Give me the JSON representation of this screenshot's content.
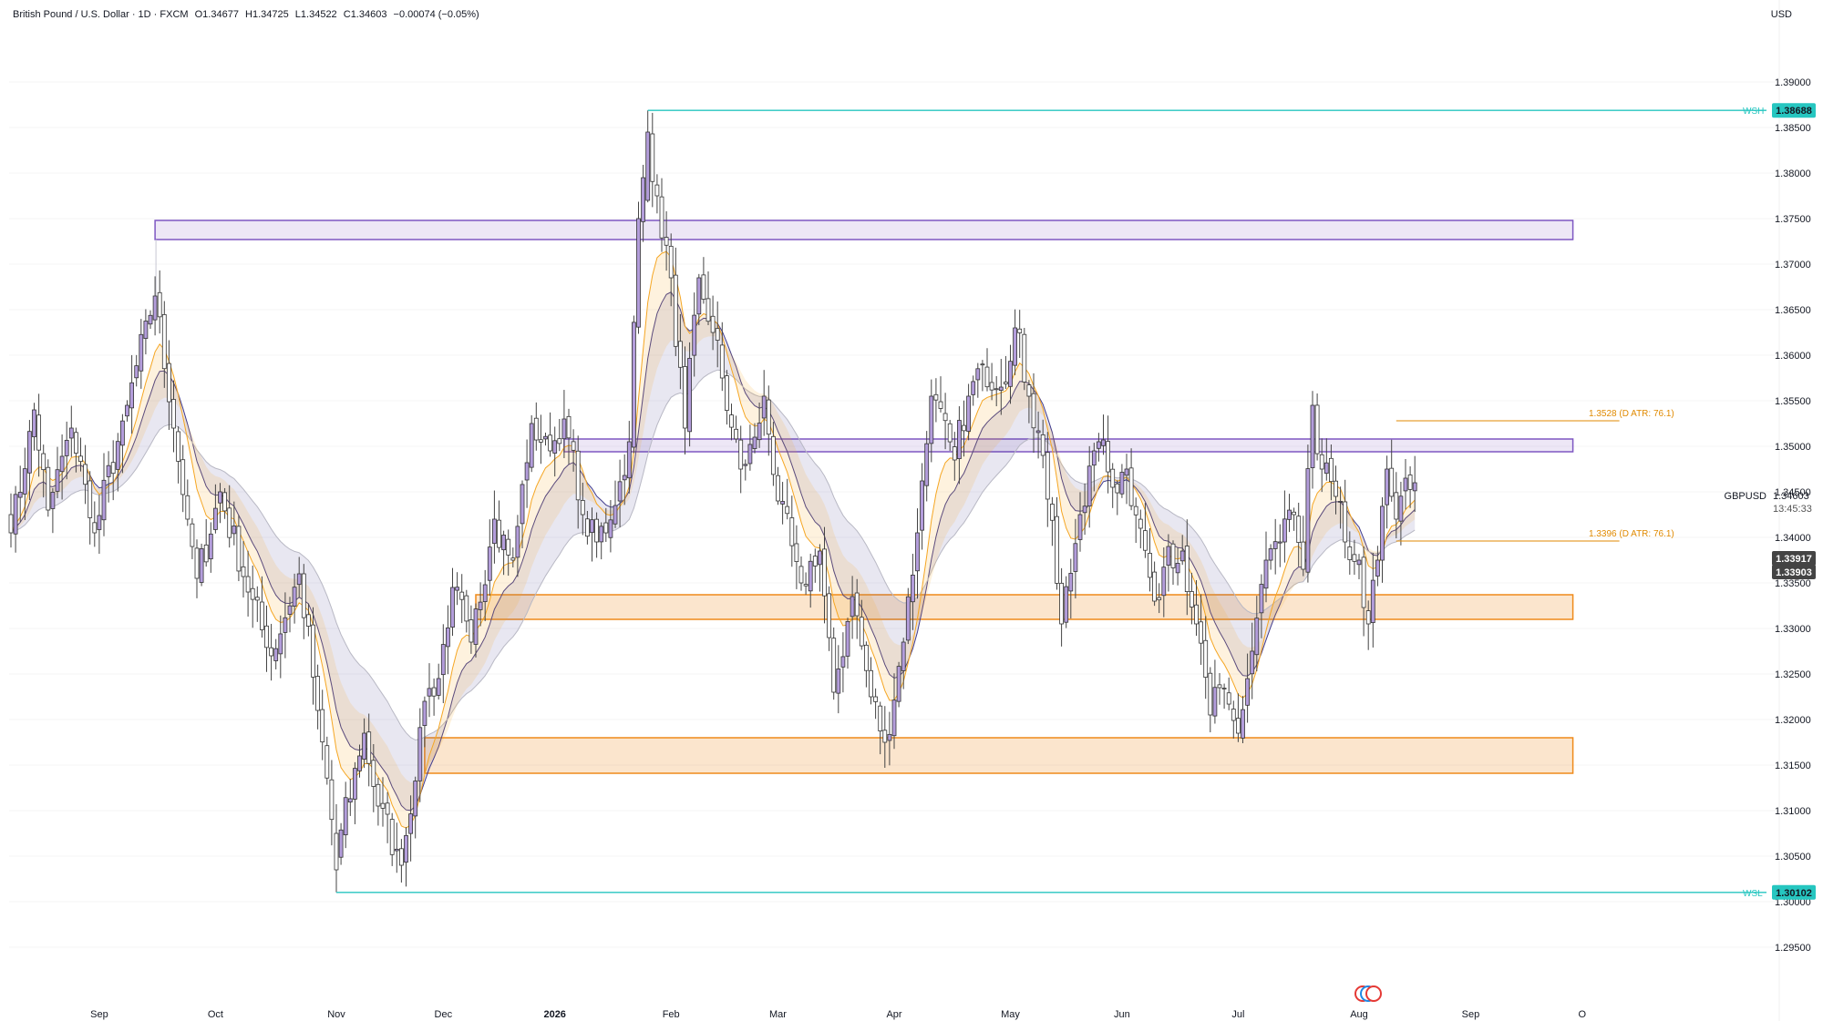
{
  "header": {
    "symbol_line": "British Pound / U.S. Dollar · 1D · FXCM",
    "open": "O1.34677",
    "high": "H1.34725",
    "low": "L1.34522",
    "close": "C1.34603",
    "change": "−0.00074 (−0.05%)",
    "currency": "USD"
  },
  "colors": {
    "bull": "#b39ddb",
    "bear": "#ffffff",
    "wick": "#444444",
    "supply_zone": "#7e57c2",
    "demand_zone": "#ef8a1a",
    "ema_fast": "#f5a623",
    "ema_slow_band": "#3f3a8c",
    "swing_line": "#26c6c0",
    "atr_label": "#e08a00"
  },
  "price_axis": {
    "ticks": [
      "1.39000",
      "1.38500",
      "1.38000",
      "1.37500",
      "1.37000",
      "1.36500",
      "1.36000",
      "1.35500",
      "1.35000",
      "1.34500",
      "1.34000",
      "1.33500",
      "1.33000",
      "1.32500",
      "1.32000",
      "1.31500",
      "1.31000",
      "1.30500",
      "1.30000",
      "1.29500"
    ],
    "last_price": "1.34603",
    "countdown": "13:45:33",
    "symbol": "GBPUSD",
    "marker_a": "1.33917",
    "marker_b": "1.33903"
  },
  "time_axis": {
    "labels": [
      "Sep",
      "Oct",
      "Nov",
      "Dec",
      "2026",
      "Feb",
      "Mar",
      "Apr",
      "May",
      "Jun",
      "Jul",
      "Aug",
      "Sep",
      "O"
    ]
  },
  "annotations": {
    "wsh_label": "WSH",
    "wsh_value": "1.38688",
    "wsl_label": "WSL",
    "wsl_value": "1.30102",
    "atr_upper": "1.3528 (D ATR: 76.1)",
    "atr_lower": "1.3396 (D ATR: 76.1)"
  },
  "chart_data": {
    "type": "candlestick",
    "symbol": "GBPUSD",
    "timeframe": "1D",
    "ylim": [
      1.291,
      1.395
    ],
    "price_ticks": [
      1.39,
      1.385,
      1.38,
      1.375,
      1.37,
      1.365,
      1.36,
      1.355,
      1.35,
      1.345,
      1.34,
      1.335,
      1.33,
      1.325,
      1.32,
      1.315,
      1.31,
      1.305,
      1.3,
      1.295
    ],
    "month_labels": [
      {
        "label": "Sep",
        "bar": 19
      },
      {
        "label": "Oct",
        "bar": 44
      },
      {
        "label": "Nov",
        "bar": 70
      },
      {
        "label": "Dec",
        "bar": 93
      },
      {
        "label": "2026",
        "bar": 117
      },
      {
        "label": "Feb",
        "bar": 142
      },
      {
        "label": "Mar",
        "bar": 165
      },
      {
        "label": "Apr",
        "bar": 190
      },
      {
        "label": "May",
        "bar": 215
      },
      {
        "label": "Jun",
        "bar": 239
      },
      {
        "label": "Jul",
        "bar": 264
      },
      {
        "label": "Aug",
        "bar": 290
      },
      {
        "label": "Sep",
        "bar": 314
      },
      {
        "label": "O",
        "bar": 338
      }
    ],
    "anchors": [
      [
        0,
        1.3405
      ],
      [
        5,
        1.354
      ],
      [
        8,
        1.343
      ],
      [
        13,
        1.352
      ],
      [
        18,
        1.3405
      ],
      [
        25,
        1.3545
      ],
      [
        31,
        1.3665
      ],
      [
        35,
        1.352
      ],
      [
        38,
        1.342
      ],
      [
        40,
        1.3355
      ],
      [
        45,
        1.345
      ],
      [
        51,
        1.334
      ],
      [
        56,
        1.327
      ],
      [
        62,
        1.336
      ],
      [
        66,
        1.321
      ],
      [
        70,
        1.305
      ],
      [
        76,
        1.3185
      ],
      [
        79,
        1.3105
      ],
      [
        84,
        1.304
      ],
      [
        89,
        1.322
      ],
      [
        92,
        1.3245
      ],
      [
        95,
        1.3345
      ],
      [
        99,
        1.3285
      ],
      [
        104,
        1.342
      ],
      [
        108,
        1.3375
      ],
      [
        112,
        1.3525
      ],
      [
        116,
        1.3495
      ],
      [
        119,
        1.353
      ],
      [
        123,
        1.3425
      ],
      [
        126,
        1.3395
      ],
      [
        130,
        1.3435
      ],
      [
        133,
        1.3505
      ],
      [
        135,
        1.375
      ],
      [
        137,
        1.384
      ],
      [
        139,
        1.3775
      ],
      [
        142,
        1.3685
      ],
      [
        145,
        1.352
      ],
      [
        148,
        1.3685
      ],
      [
        151,
        1.3625
      ],
      [
        153,
        1.3575
      ],
      [
        157,
        1.3475
      ],
      [
        160,
        1.351
      ],
      [
        162,
        1.3555
      ],
      [
        165,
        1.344
      ],
      [
        170,
        1.335
      ],
      [
        174,
        1.3385
      ],
      [
        177,
        1.323
      ],
      [
        181,
        1.3335
      ],
      [
        185,
        1.3225
      ],
      [
        188,
        1.3175
      ],
      [
        192,
        1.3285
      ],
      [
        195,
        1.3405
      ],
      [
        198,
        1.3555
      ],
      [
        203,
        1.3485
      ],
      [
        206,
        1.3555
      ],
      [
        209,
        1.359
      ],
      [
        213,
        1.3565
      ],
      [
        216,
        1.363
      ],
      [
        219,
        1.3555
      ],
      [
        222,
        1.349
      ],
      [
        226,
        1.3305
      ],
      [
        230,
        1.3425
      ],
      [
        234,
        1.3505
      ],
      [
        237,
        1.3455
      ],
      [
        240,
        1.3475
      ],
      [
        243,
        1.341
      ],
      [
        246,
        1.333
      ],
      [
        249,
        1.339
      ],
      [
        252,
        1.3385
      ],
      [
        255,
        1.3305
      ],
      [
        258,
        1.3205
      ],
      [
        260,
        1.3235
      ],
      [
        264,
        1.3185
      ],
      [
        267,
        1.3275
      ],
      [
        270,
        1.3375
      ],
      [
        273,
        1.3395
      ],
      [
        276,
        1.3425
      ],
      [
        278,
        1.3365
      ],
      [
        280,
        1.3545
      ],
      [
        282,
        1.3475
      ],
      [
        285,
        1.3445
      ],
      [
        287,
        1.3395
      ],
      [
        290,
        1.3375
      ],
      [
        292,
        1.3305
      ],
      [
        294,
        1.3375
      ],
      [
        296,
        1.3475
      ],
      [
        298,
        1.342
      ],
      [
        300,
        1.3465
      ],
      [
        302,
        1.346
      ]
    ],
    "zones": [
      {
        "type": "supply",
        "top": 1.3748,
        "bottom": 1.3727,
        "start_bar": 31,
        "end_bar": 336
      },
      {
        "type": "supply",
        "top": 1.3508,
        "bottom": 1.3494,
        "start_bar": 119,
        "end_bar": 336
      },
      {
        "type": "demand",
        "top": 1.3337,
        "bottom": 1.331,
        "start_bar": 100,
        "end_bar": 336
      },
      {
        "type": "demand",
        "top": 1.318,
        "bottom": 1.3141,
        "start_bar": 89,
        "end_bar": 336
      }
    ],
    "swing_high": {
      "value": 1.38688,
      "start_bar": 137
    },
    "swing_low": {
      "value": 1.30102,
      "start_bar": 70
    },
    "atr_levels": [
      {
        "value": 1.3528,
        "start_bar": 298,
        "end_bar": 346
      },
      {
        "value": 1.3396,
        "start_bar": 298,
        "end_bar": 346
      }
    ]
  }
}
